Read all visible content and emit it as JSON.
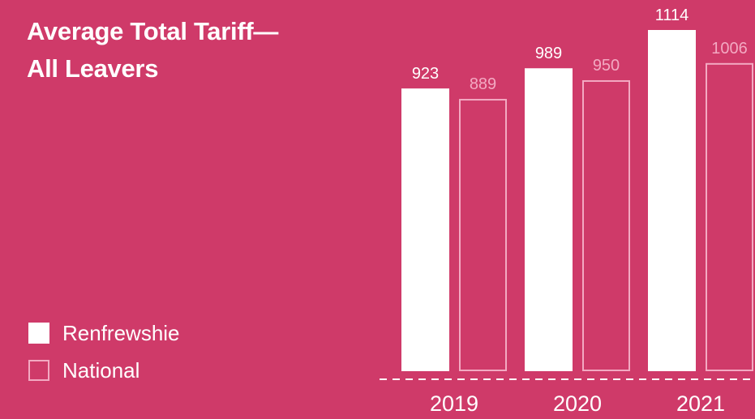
{
  "chart_data": {
    "type": "bar",
    "title": "Average Total Tariff—\nAll Leavers",
    "categories": [
      "2019",
      "2020",
      "2021"
    ],
    "series": [
      {
        "name": "Renfrewshie",
        "values": [
          923,
          989,
          1114
        ],
        "style": "solid",
        "color": "#FFFFFF"
      },
      {
        "name": "National",
        "values": [
          889,
          950,
          1006
        ],
        "style": "outline",
        "color": "#F3A9C2"
      }
    ],
    "xlabel": "",
    "ylabel": "",
    "ylim": [
      0,
      1114
    ],
    "grid": false,
    "legend_position": "bottom-left",
    "baseline_style": "dashed"
  },
  "colors": {
    "background": "#CF3A69",
    "primary": "#FFFFFF",
    "secondary": "#F3A9C2"
  }
}
